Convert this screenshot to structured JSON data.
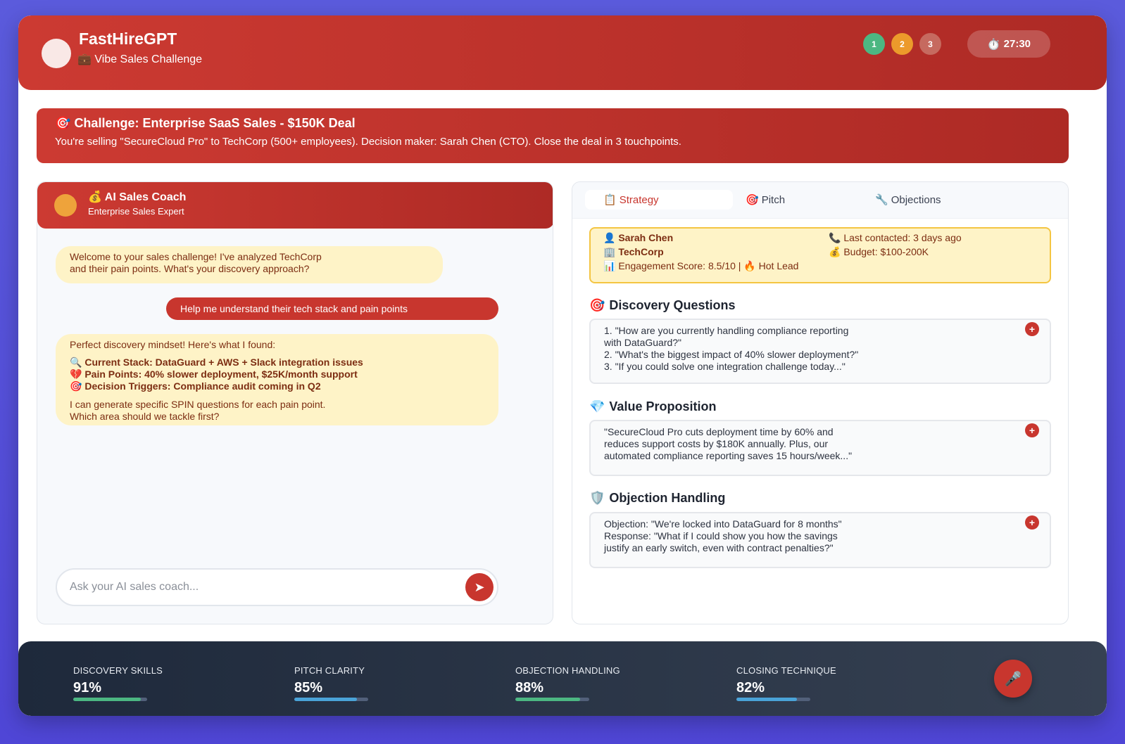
{
  "header": {
    "title": "FastHireGPT",
    "subtitle_icon": "💼",
    "subtitle": "Vibe Sales Challenge",
    "steps": [
      {
        "label": "1",
        "color": "#4cb782"
      },
      {
        "label": "2",
        "color": "#ec9a2b"
      },
      {
        "label": "3",
        "color": "#c66a5f"
      }
    ],
    "timer_icon": "⏱️",
    "timer": "27:30"
  },
  "challenge": {
    "icon": "🎯",
    "title": "Challenge: Enterprise SaaS Sales - $150K Deal",
    "description": "You're selling \"SecureCloud Pro\" to TechCorp (500+ employees). Decision maker: Sarah Chen (CTO). Close the deal in 3 touchpoints."
  },
  "chat": {
    "coach_icon": "💰",
    "coach_name": "AI Sales Coach",
    "coach_role": "Enterprise Sales Expert",
    "messages": {
      "ai_1_line1": "Welcome to your sales challenge! I've analyzed TechCorp",
      "ai_1_line2": "and their pain points. What's your discovery approach?",
      "user_1": "Help me understand their tech stack and pain points",
      "ai_2_intro": "Perfect discovery mindset! Here's what I found:",
      "ai_2_items": [
        {
          "icon": "🔍",
          "text": "Current Stack: DataGuard + AWS + Slack integration issues"
        },
        {
          "icon": "💔",
          "text": "Pain Points: 40% slower deployment, $25K/month support"
        },
        {
          "icon": "🎯",
          "text": "Decision Triggers: Compliance audit coming in Q2"
        }
      ],
      "ai_2_line1": "I can generate specific SPIN questions for each pain point.",
      "ai_2_line2": "Which area should we tackle first?"
    },
    "input_placeholder": "Ask your AI sales coach...",
    "send_icon": "➤"
  },
  "tabs": [
    {
      "icon": "📋",
      "label": "Strategy"
    },
    {
      "icon": "🎯",
      "label": "Pitch"
    },
    {
      "icon": "🔧",
      "label": "Objections"
    }
  ],
  "profile": {
    "name_icon": "👤",
    "name": "Sarah Chen",
    "company_icon": "🏢",
    "company": "TechCorp",
    "engagement_icon": "📊",
    "engagement": "Engagement Score: 8.5/10 |",
    "hot_icon": "🔥",
    "hot": "Hot Lead",
    "contact_icon": "📞",
    "contact": "Last contacted: 3 days ago",
    "budget_icon": "💰",
    "budget": "Budget: $100-200K"
  },
  "sections": {
    "discovery": {
      "icon": "🎯",
      "title": "Discovery Questions",
      "lines": [
        "1. \"How are you currently handling compliance reporting",
        "with DataGuard?\"",
        "2. \"What's the biggest impact of 40% slower deployment?\"",
        "3. \"If you could solve one integration challenge today...\""
      ]
    },
    "value": {
      "icon": "💎",
      "title": "Value Proposition",
      "lines": [
        "\"SecureCloud Pro cuts deployment time by 60% and",
        "reduces support costs by $180K annually. Plus, our",
        "automated compliance reporting saves 15 hours/week...\""
      ]
    },
    "objection": {
      "icon": "🛡️",
      "title": "Objection Handling",
      "lines": [
        "Objection: \"We're locked into DataGuard for 8 months\"",
        "Response: \"What if I could show you how the savings",
        "justify an early switch, even with contract penalties?\""
      ]
    },
    "add_label": "+"
  },
  "stats": [
    {
      "label": "DISCOVERY SKILLS",
      "value": "91%",
      "fill": 0.91,
      "color": "#4cb782"
    },
    {
      "label": "PITCH CLARITY",
      "value": "85%",
      "fill": 0.85,
      "color": "#4aa3d8"
    },
    {
      "label": "OBJECTION HANDLING",
      "value": "88%",
      "fill": 0.88,
      "color": "#4cb782"
    },
    {
      "label": "CLOSING TECHNIQUE",
      "value": "82%",
      "fill": 0.82,
      "color": "#4aa3d8"
    }
  ],
  "mic_icon": "🎤"
}
